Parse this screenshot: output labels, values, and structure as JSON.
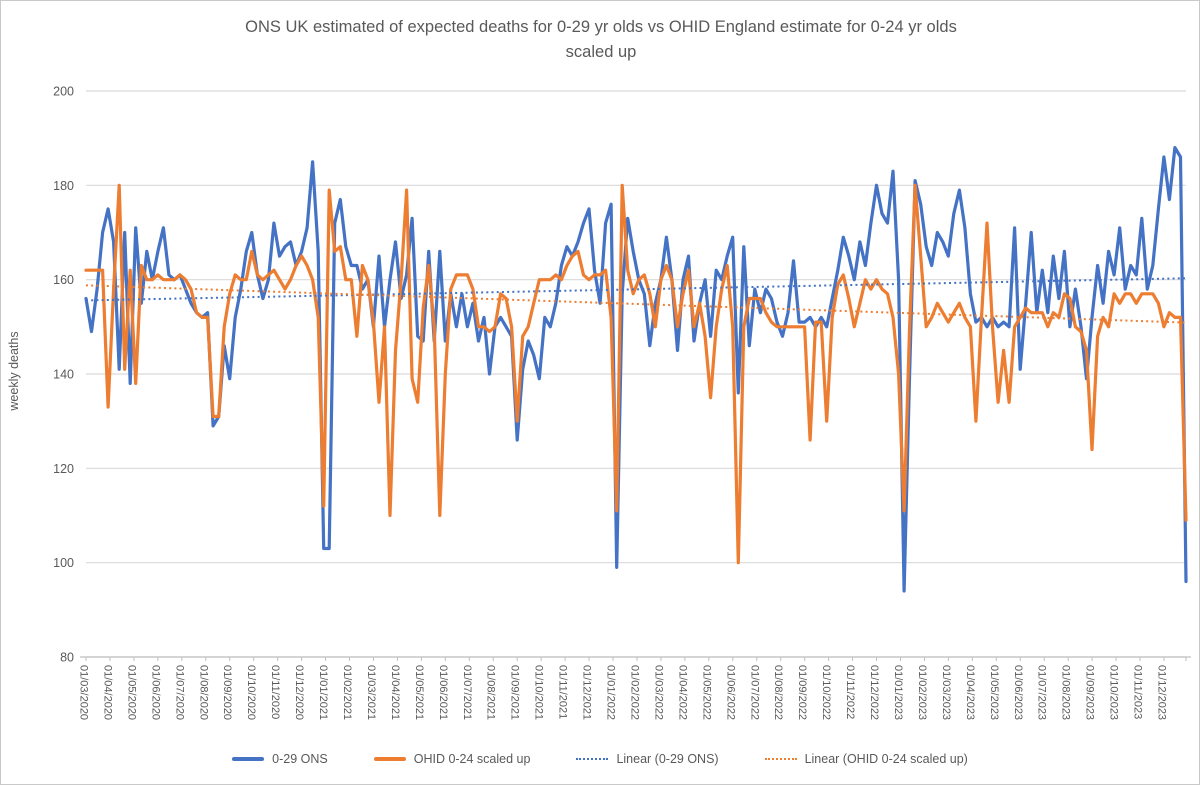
{
  "title": {
    "line1": "ONS UK estimated of expected deaths for 0-29 yr olds vs OHID England estimate for 0-24 yr olds",
    "line2": "scaled up"
  },
  "y_axis": {
    "title": "weekly deaths"
  },
  "chart_data": {
    "type": "line",
    "title": "ONS UK estimated of expected deaths for 0-29 yr olds vs OHID England estimate for 0-24 yr olds scaled up",
    "ylabel": "weekly deaths",
    "xlabel": "",
    "ylim": [
      80,
      200
    ],
    "y_ticks": [
      200,
      180,
      160,
      140,
      120,
      100,
      80
    ],
    "grid": "horizontal-only",
    "legend_position": "bottom",
    "x_frequency": "weekly",
    "x_tick_labels": [
      "01/03/2020",
      "01/04/2020",
      "01/05/2020",
      "01/06/2020",
      "01/07/2020",
      "01/08/2020",
      "01/09/2020",
      "01/10/2020",
      "01/11/2020",
      "01/12/2020",
      "01/01/2021",
      "01/02/2021",
      "01/03/2021",
      "01/04/2021",
      "01/05/2021",
      "01/06/2021",
      "01/07/2021",
      "01/08/2021",
      "01/09/2021",
      "01/10/2021",
      "01/11/2021",
      "01/12/2021",
      "01/01/2022",
      "01/02/2022",
      "01/03/2022",
      "01/04/2022",
      "01/05/2022",
      "01/06/2022",
      "01/07/2022",
      "01/08/2022",
      "01/09/2022",
      "01/10/2022",
      "01/11/2022",
      "01/12/2022",
      "01/01/2023",
      "01/02/2023",
      "01/03/2023",
      "01/04/2023",
      "01/05/2023",
      "01/06/2023",
      "01/07/2023",
      "01/08/2023",
      "01/09/2023",
      "01/10/2023",
      "01/11/2023",
      "01/12/2023"
    ],
    "colors": {
      "blue": "#4472C4",
      "orange": "#ED7D31",
      "grid": "#D9D9D9",
      "axis": "#BFBFBF",
      "text": "#595959"
    },
    "series": [
      {
        "name": "0-29 ONS",
        "color": "#4472C4",
        "values": [
          156,
          149,
          158,
          170,
          175,
          168,
          141,
          170,
          138,
          171,
          155,
          166,
          160,
          166,
          171,
          161,
          160,
          161,
          158,
          155,
          153,
          152,
          153,
          129,
          131,
          146,
          139,
          152,
          158,
          166,
          170,
          161,
          156,
          160,
          172,
          165,
          167,
          168,
          163,
          166,
          171,
          185,
          166,
          103,
          103,
          172,
          177,
          167,
          163,
          163,
          158,
          160,
          150,
          165,
          150,
          160,
          168,
          156,
          161,
          173,
          148,
          147,
          166,
          147,
          166,
          147,
          157,
          150,
          157,
          150,
          155,
          147,
          152,
          140,
          150,
          152,
          150,
          148,
          126,
          141,
          147,
          144,
          139,
          152,
          150,
          155,
          163,
          167,
          165,
          168,
          172,
          175,
          162,
          155,
          172,
          176,
          99,
          157,
          173,
          166,
          160,
          157,
          146,
          155,
          160,
          169,
          160,
          145,
          160,
          165,
          147,
          155,
          160,
          148,
          162,
          160,
          165,
          169,
          136,
          167,
          146,
          158,
          153,
          158,
          156,
          151,
          148,
          153,
          164,
          151,
          151,
          152,
          150,
          152,
          150,
          156,
          162,
          169,
          165,
          160,
          168,
          163,
          172,
          180,
          174,
          172,
          183,
          160,
          94,
          140,
          181,
          176,
          167,
          163,
          170,
          168,
          165,
          174,
          179,
          171,
          157,
          151,
          152,
          150,
          152,
          150,
          151,
          150,
          171,
          141,
          155,
          170,
          153,
          162,
          153,
          165,
          156,
          166,
          150,
          158,
          150,
          139,
          152,
          163,
          155,
          166,
          161,
          171,
          158,
          163,
          161,
          173,
          158,
          163,
          175,
          186,
          177,
          188,
          186,
          96
        ]
      },
      {
        "name": "OHID 0-24 scaled up",
        "color": "#ED7D31",
        "values": [
          162,
          162,
          162,
          162,
          133,
          158,
          180,
          141,
          162,
          138,
          163,
          160,
          160,
          161,
          160,
          160,
          160,
          161,
          160,
          158,
          153,
          152,
          152,
          131,
          131,
          150,
          157,
          161,
          160,
          160,
          166,
          161,
          160,
          161,
          162,
          160,
          158,
          160,
          163,
          165,
          163,
          160,
          152,
          112,
          179,
          166,
          167,
          160,
          160,
          148,
          163,
          160,
          151,
          134,
          150,
          110,
          145,
          160,
          179,
          139,
          134,
          154,
          163,
          150,
          110,
          140,
          158,
          161,
          161,
          161,
          158,
          150,
          150,
          149,
          150,
          157,
          156,
          150,
          130,
          148,
          150,
          155,
          160,
          160,
          160,
          161,
          160,
          163,
          165,
          166,
          161,
          160,
          161,
          161,
          162,
          152,
          111,
          180,
          162,
          157,
          160,
          161,
          157,
          150,
          160,
          163,
          160,
          150,
          157,
          162,
          150,
          155,
          148,
          135,
          150,
          158,
          163,
          150,
          100,
          150,
          156,
          156,
          156,
          153,
          151,
          150,
          150,
          150,
          150,
          150,
          150,
          126,
          151,
          151,
          130,
          152,
          159,
          161,
          156,
          150,
          155,
          160,
          158,
          160,
          158,
          157,
          152,
          140,
          111,
          150,
          180,
          165,
          150,
          152,
          155,
          153,
          151,
          153,
          155,
          152,
          150,
          130,
          152,
          172,
          150,
          134,
          145,
          134,
          150,
          152,
          154,
          153,
          153,
          153,
          150,
          153,
          152,
          157,
          156,
          150,
          149,
          145,
          124,
          148,
          152,
          150,
          157,
          155,
          157,
          157,
          155,
          157,
          157,
          157,
          155,
          150,
          153,
          152,
          152,
          109
        ]
      }
    ],
    "trendlines": [
      {
        "name": "Linear (0-29 ONS)",
        "color": "#4472C4",
        "start_value": 155.6,
        "end_value": 160.3
      },
      {
        "name": "Linear (OHID 0-24 scaled up)",
        "color": "#ED7D31",
        "start_value": 158.8,
        "end_value": 150.9
      }
    ],
    "legend": [
      {
        "label": "0-29 ONS"
      },
      {
        "label": "OHID 0-24 scaled up"
      },
      {
        "label": "Linear (0-29 ONS)"
      },
      {
        "label": "Linear (OHID 0-24 scaled up)"
      }
    ]
  }
}
